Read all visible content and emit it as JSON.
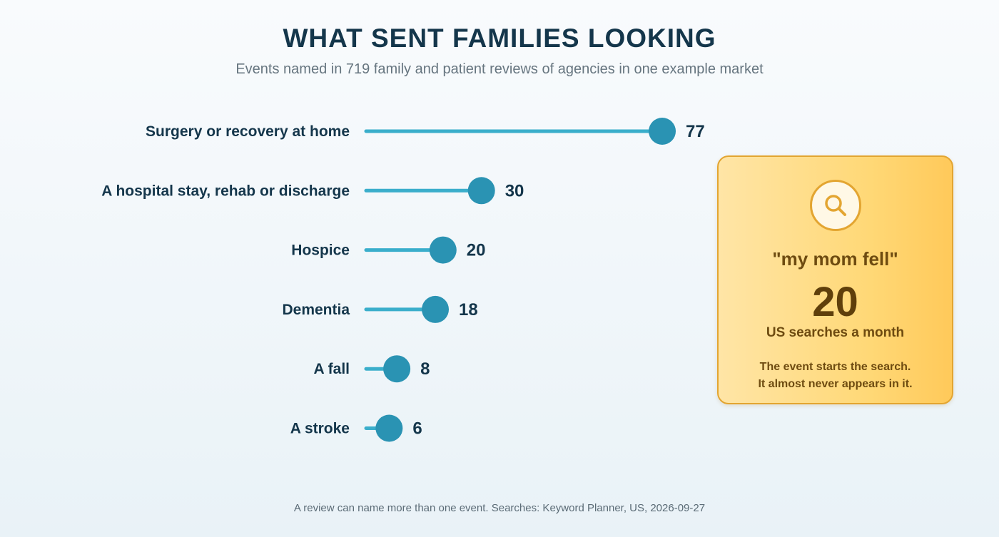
{
  "title": "WHAT SENT FAMILIES LOOKING",
  "subtitle": "Events named in 719 family and patient reviews of agencies in one example market",
  "chart_data": {
    "type": "bar",
    "style": "lollipop",
    "categories": [
      "Surgery or recovery at home",
      "A hospital stay, rehab or discharge",
      "Hospice",
      "Dementia",
      "A fall",
      "A stroke"
    ],
    "values": [
      77,
      30,
      20,
      18,
      8,
      6
    ],
    "data_labels": [
      "77",
      "30",
      "20",
      "18",
      "8",
      "6"
    ],
    "xlim": [
      0,
      80
    ],
    "grid": false,
    "colors": {
      "stem": "#3aaecb",
      "dot": "#2a93b3"
    }
  },
  "callout": {
    "icon": "search-icon",
    "quote": "\"my mom fell\"",
    "number": "20",
    "unit": "US searches a month",
    "note_lines": [
      "The event starts the search.",
      "It almost never appears in it."
    ],
    "colors": {
      "border": "#e3a531",
      "text": "#6e4b10"
    }
  },
  "footnote": "A review can name more than one event. Searches: Keyword Planner, US, 2026-09-27"
}
